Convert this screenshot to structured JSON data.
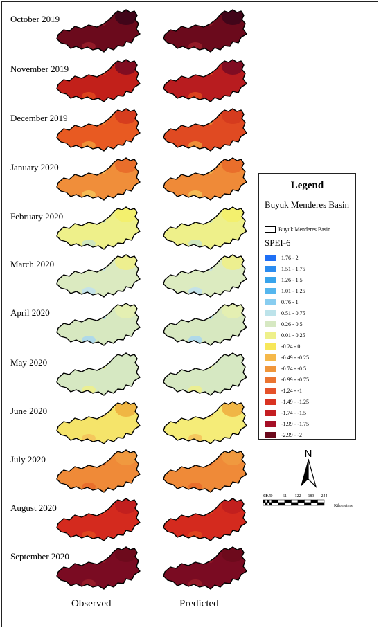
{
  "months": [
    {
      "label": "October 2019",
      "observed": "#6b0a1c",
      "predicted": "#6b0a1c",
      "accent": "#3d0419",
      "spot": "#9a1e2a"
    },
    {
      "label": "November 2019",
      "observed": "#c2201a",
      "predicted": "#b81c1f",
      "accent": "#7a0b22",
      "spot": "#e0481e"
    },
    {
      "label": "December 2019",
      "observed": "#e85a22",
      "predicted": "#e04a22",
      "accent": "#d43a1e",
      "spot": "#f09a3a"
    },
    {
      "label": "January 2020",
      "observed": "#f08e3a",
      "predicted": "#ef8a38",
      "accent": "#e86a2a",
      "spot": "#f5c25a"
    },
    {
      "label": "February 2020",
      "observed": "#eef08a",
      "predicted": "#eef08a",
      "accent": "#f3ef6a",
      "spot": "#c9e4c8"
    },
    {
      "label": "March 2020",
      "observed": "#dbeac0",
      "predicted": "#dcebc0",
      "accent": "#eef08a",
      "spot": "#bfe0ee"
    },
    {
      "label": "April 2020",
      "observed": "#d7e8c0",
      "predicted": "#d7e8c0",
      "accent": "#e6efb0",
      "spot": "#a8d6f0"
    },
    {
      "label": "May 2020",
      "observed": "#d6e8c2",
      "predicted": "#d6e8c2",
      "accent": "#d6e8c2",
      "spot": "#eef08a"
    },
    {
      "label": "June 2020",
      "observed": "#f5e46a",
      "predicted": "#f5ec78",
      "accent": "#f0b040",
      "spot": "#f5c25a"
    },
    {
      "label": "July 2020",
      "observed": "#ef8a38",
      "predicted": "#ef8a38",
      "accent": "#f09a40",
      "spot": "#e86a2a"
    },
    {
      "label": "August 2020",
      "observed": "#d42a1e",
      "predicted": "#d42a1e",
      "accent": "#c01e1e",
      "spot": "#e0481e"
    },
    {
      "label": "September 2020",
      "observed": "#7a0b22",
      "predicted": "#7a0b22",
      "accent": "#6b0a1c",
      "spot": "#9a1e2a"
    }
  ],
  "columns": {
    "observed": "Observed",
    "predicted": "Predicted"
  },
  "legend": {
    "title": "Legend",
    "layer_title": "Buyuk Menderes Basin",
    "basin_label": "Buyuk Menderes Basin",
    "index_title": "SPEI-6",
    "classes": [
      {
        "label": "1.76 - 2",
        "color": "#1e6ff5"
      },
      {
        "label": "1.51 - 1.75",
        "color": "#2b8cf0"
      },
      {
        "label": "1.26 - 1.5",
        "color": "#38a4ec"
      },
      {
        "label": "1.01 - 1.25",
        "color": "#55b6ee"
      },
      {
        "label": "0.76 - 1",
        "color": "#88cdf0"
      },
      {
        "label": "0.51 - 0.75",
        "color": "#bde3ea"
      },
      {
        "label": "0.26 - 0.5",
        "color": "#d6e8c2"
      },
      {
        "label": "0.01 - 0.25",
        "color": "#eef08a"
      },
      {
        "label": "-0.24 - 0",
        "color": "#f7e75a"
      },
      {
        "label": "-0.49 - -0.25",
        "color": "#f5b84a"
      },
      {
        "label": "-0.74 - -0.5",
        "color": "#f0963a"
      },
      {
        "label": "-0.99 - -0.75",
        "color": "#eb7430"
      },
      {
        "label": "-1.24 - -1",
        "color": "#e5522a"
      },
      {
        "label": "-1.49 - -1.25",
        "color": "#d93322"
      },
      {
        "label": "-1.74 - -1.5",
        "color": "#c41e22"
      },
      {
        "label": "-1.99 - -1.75",
        "color": "#a50f26"
      },
      {
        "label": "-2.99 - -2",
        "color": "#6b0a1c"
      }
    ]
  },
  "north_label": "N",
  "scale": {
    "ticks": [
      "61",
      "30.5",
      "0",
      "61",
      "122",
      "183",
      "244"
    ],
    "unit": "Kilometers"
  }
}
